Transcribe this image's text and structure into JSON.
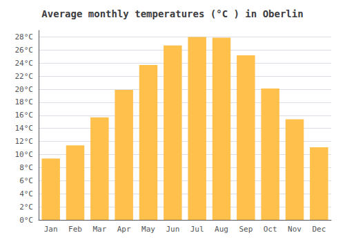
{
  "chart_data": {
    "type": "bar",
    "title": "Average monthly temperatures (°C ) in Oberlin",
    "categories": [
      "Jan",
      "Feb",
      "Mar",
      "Apr",
      "May",
      "Jun",
      "Jul",
      "Aug",
      "Sep",
      "Oct",
      "Nov",
      "Dec"
    ],
    "values": [
      9.4,
      11.4,
      15.7,
      19.9,
      23.7,
      26.7,
      28.0,
      27.9,
      25.2,
      20.1,
      15.4,
      11.1
    ],
    "color": "#FFC04C",
    "ylim": [
      0,
      29
    ],
    "yticks": [
      {
        "value": 0,
        "label": "0°C"
      },
      {
        "value": 2,
        "label": "2°C"
      },
      {
        "value": 4,
        "label": "4°C"
      },
      {
        "value": 6,
        "label": "6°C"
      },
      {
        "value": 8,
        "label": "8°C"
      },
      {
        "value": 10,
        "label": "10°C"
      },
      {
        "value": 12,
        "label": "12°C"
      },
      {
        "value": 14,
        "label": "14°C"
      },
      {
        "value": 16,
        "label": "16°C"
      },
      {
        "value": 18,
        "label": "18°C"
      },
      {
        "value": 20,
        "label": "20°C"
      },
      {
        "value": 22,
        "label": "22°C"
      },
      {
        "value": 24,
        "label": "24°C"
      },
      {
        "value": 26,
        "label": "26°C"
      },
      {
        "value": 28,
        "label": "28°C"
      }
    ],
    "grid": true
  }
}
